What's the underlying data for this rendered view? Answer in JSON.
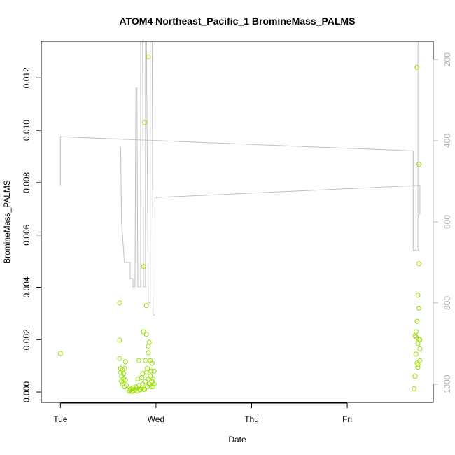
{
  "chart_data": {
    "type": "scatter",
    "title": "ATOM4 Northeast_Pacific_1 BromineMass_PALMS",
    "xlabel": "Date",
    "ylabel": "BromineMass_PALMS",
    "x_ticks": [
      "Tue",
      "Wed",
      "Thu",
      "Fri"
    ],
    "x_unit": "days (Tue 00:00 = 0)",
    "xlim": [
      -0.2,
      3.9
    ],
    "ylim": [
      -0.0004,
      0.0134
    ],
    "y_ticks": [
      0.0,
      0.002,
      0.004,
      0.006,
      0.008,
      0.01,
      0.012
    ],
    "y_tick_labels": [
      "0.000",
      "0.002",
      "0.004",
      "0.006",
      "0.008",
      "0.010",
      "0.012"
    ],
    "right_axis": {
      "label": "",
      "reversed": true,
      "ylim": [
        1045,
        155
      ],
      "ticks": [
        200,
        400,
        600,
        800,
        1000
      ],
      "color": "#b0b0b0"
    },
    "colors": {
      "points": "#9ade00",
      "line": "#c0c0c0",
      "axis": "#000000"
    },
    "series": [
      {
        "kind": "points",
        "values": [
          [
            0.0,
            0.00147
          ],
          [
            0.62,
            0.0034
          ],
          [
            0.62,
            0.00198
          ],
          [
            0.62,
            0.00128
          ],
          [
            0.63,
            0.0009
          ],
          [
            0.63,
            0.00075
          ],
          [
            0.64,
            0.0006
          ],
          [
            0.64,
            0.0004
          ],
          [
            0.65,
            0.00085
          ],
          [
            0.65,
            0.0003
          ],
          [
            0.66,
            0.0005
          ],
          [
            0.66,
            0.0007
          ],
          [
            0.67,
            0.0009
          ],
          [
            0.67,
            0.0002
          ],
          [
            0.68,
            0.00115
          ],
          [
            0.68,
            0.00045
          ],
          [
            0.69,
            0.00025
          ],
          [
            0.72,
            3e-05
          ],
          [
            0.73,
            8e-05
          ],
          [
            0.74,
            0.00012
          ],
          [
            0.75,
            2e-05
          ],
          [
            0.76,
            0.00015
          ],
          [
            0.77,
            5e-05
          ],
          [
            0.78,
            0.0001
          ],
          [
            0.79,
            0.0002
          ],
          [
            0.8,
            4e-05
          ],
          [
            0.81,
            0.0005
          ],
          [
            0.82,
            0.00025
          ],
          [
            0.82,
            0.0012
          ],
          [
            0.83,
            8e-05
          ],
          [
            0.84,
            0.0001
          ],
          [
            0.85,
            0.00015
          ],
          [
            0.85,
            0.00055
          ],
          [
            0.86,
            0.0003
          ],
          [
            0.86,
            0.0007
          ],
          [
            0.87,
            0.0001
          ],
          [
            0.87,
            0.0023
          ],
          [
            0.87,
            0.0048
          ],
          [
            0.88,
            0.0103
          ],
          [
            0.88,
            0.0001
          ],
          [
            0.89,
            0.0004
          ],
          [
            0.89,
            0.0012
          ],
          [
            0.9,
            0.0022
          ],
          [
            0.9,
            0.00075
          ],
          [
            0.9,
            0.0033
          ],
          [
            0.91,
            0.0002
          ],
          [
            0.91,
            0.0009
          ],
          [
            0.92,
            0.0015
          ],
          [
            0.92,
            0.00175
          ],
          [
            0.92,
            0.0005
          ],
          [
            0.92,
            0.0128
          ],
          [
            0.93,
            0.0019
          ],
          [
            0.93,
            0.0003
          ],
          [
            0.94,
            0.0006
          ],
          [
            0.94,
            0.0012
          ],
          [
            0.95,
            0.0008
          ],
          [
            0.95,
            0.0002
          ],
          [
            0.96,
            0.0004
          ],
          [
            0.96,
            0.0011
          ],
          [
            0.97,
            0.0005
          ],
          [
            0.97,
            0.0002
          ],
          [
            0.98,
            0.0003
          ],
          [
            0.98,
            0.0008
          ],
          [
            3.7,
            0.00012
          ],
          [
            3.71,
            0.0006
          ],
          [
            3.71,
            0.00215
          ],
          [
            3.72,
            0.0023
          ],
          [
            3.72,
            0.00145
          ],
          [
            3.72,
            0.0021
          ],
          [
            3.73,
            0.0011
          ],
          [
            3.73,
            0.0027
          ],
          [
            3.73,
            0.0124
          ],
          [
            3.74,
            0.00105
          ],
          [
            3.74,
            0.00185
          ],
          [
            3.74,
            0.0037
          ],
          [
            3.74,
            0.00095
          ],
          [
            3.75,
            0.002
          ],
          [
            3.75,
            0.0032
          ],
          [
            3.75,
            0.0049
          ],
          [
            3.75,
            0.0087
          ],
          [
            3.76,
            0.0012
          ],
          [
            3.76,
            0.00165
          ],
          [
            3.76,
            0.002
          ]
        ]
      },
      {
        "kind": "line",
        "axis": "right",
        "values": [
          [
            0.0,
            510
          ],
          [
            0.0,
            390
          ],
          [
            3.69,
            425
          ],
          [
            3.69,
            670
          ],
          [
            3.72,
            670
          ],
          [
            3.72,
            155
          ],
          [
            3.74,
            155
          ],
          [
            3.74,
            670
          ],
          [
            3.75,
            670
          ],
          [
            3.75,
            580
          ],
          [
            3.76,
            580
          ],
          [
            3.76,
            510
          ],
          [
            0.99,
            540
          ],
          [
            0.99,
            830
          ],
          [
            0.97,
            830
          ],
          [
            0.96,
            155
          ],
          [
            0.94,
            155
          ],
          [
            0.94,
            800
          ],
          [
            0.92,
            800
          ],
          [
            0.9,
            155
          ],
          [
            0.89,
            155
          ],
          [
            0.89,
            760
          ],
          [
            0.87,
            760
          ],
          [
            0.86,
            155
          ],
          [
            0.84,
            155
          ],
          [
            0.84,
            760
          ],
          [
            0.81,
            760
          ],
          [
            0.8,
            270
          ],
          [
            0.79,
            270
          ],
          [
            0.78,
            760
          ],
          [
            0.76,
            760
          ],
          [
            0.76,
            740
          ],
          [
            0.73,
            740
          ],
          [
            0.73,
            700
          ],
          [
            0.69,
            700
          ],
          [
            0.67,
            700
          ],
          [
            0.64,
            600
          ],
          [
            0.63,
            415
          ]
        ]
      }
    ],
    "grid": false,
    "legend": "none"
  }
}
